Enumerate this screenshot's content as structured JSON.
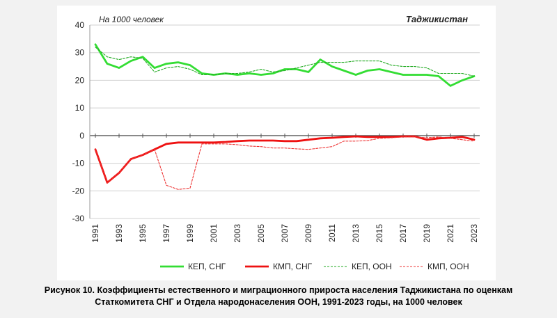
{
  "chart_data": {
    "type": "line",
    "unit_label": "На 1000 человек",
    "country_label": "Таджикистан",
    "x": [
      1991,
      1992,
      1993,
      1994,
      1995,
      1996,
      1997,
      1998,
      1999,
      2000,
      2001,
      2002,
      2003,
      2004,
      2005,
      2006,
      2007,
      2008,
      2009,
      2010,
      2011,
      2012,
      2013,
      2014,
      2015,
      2016,
      2017,
      2018,
      2019,
      2020,
      2021,
      2022,
      2023
    ],
    "xticks": [
      1991,
      1993,
      1995,
      1997,
      1999,
      2001,
      2003,
      2005,
      2007,
      2009,
      2011,
      2013,
      2015,
      2017,
      2019,
      2021,
      2023
    ],
    "ylim": [
      -30,
      40
    ],
    "yticks": [
      -30,
      -20,
      -10,
      0,
      10,
      20,
      30,
      40
    ],
    "grid": true,
    "legend_position": "bottom",
    "series": [
      {
        "name": "КЕП, СНГ",
        "color": "#33dd33",
        "style": "solid",
        "values": [
          33,
          26,
          24.5,
          27,
          28.5,
          24.5,
          26,
          26.5,
          25.5,
          22.5,
          22,
          22.5,
          22,
          22.5,
          22,
          22.5,
          24,
          24,
          23,
          27.5,
          25,
          23.5,
          22,
          23.5,
          24,
          23,
          22,
          22,
          22,
          21.5,
          18,
          20,
          21.5
        ]
      },
      {
        "name": "КМП, СНГ",
        "color": "#ee1111",
        "style": "solid",
        "values": [
          -5,
          -17,
          -13.5,
          -8.5,
          -7,
          -5,
          -3,
          -2.5,
          -2.5,
          -2.5,
          -2.5,
          -2.3,
          -2,
          -1.8,
          -1.8,
          -1.8,
          -2,
          -2,
          -1.5,
          -1,
          -0.8,
          -0.5,
          -0.3,
          -0.5,
          -0.5,
          -0.5,
          -0.3,
          -0.3,
          -1.5,
          -1,
          -0.8,
          -0.5,
          -1.5
        ]
      },
      {
        "name": "КЕП, ООН",
        "color": "#22aa22",
        "style": "dashed",
        "values": [
          32,
          28.5,
          27.5,
          28.5,
          28,
          23,
          24.5,
          25,
          24,
          22,
          22,
          22.5,
          22.5,
          23,
          24,
          23,
          23.5,
          24.5,
          25.5,
          26.5,
          26.5,
          26.5,
          27,
          27,
          27,
          25.5,
          25,
          25,
          24.5,
          22.5,
          22.5,
          22.5,
          21.5
        ]
      },
      {
        "name": "КМП, ООН",
        "color": "#ee3333",
        "style": "dashed",
        "values": [
          -5,
          -17,
          -13.5,
          -8.5,
          -7,
          -5,
          -18,
          -19.5,
          -19,
          -3,
          -3,
          -3,
          -3.3,
          -3.8,
          -4,
          -4.5,
          -4.5,
          -4.8,
          -5,
          -4.5,
          -4,
          -2,
          -2,
          -1.8,
          -1,
          -0.8,
          -0.5,
          -0.5,
          -0.8,
          -0.5,
          -1,
          -1.5,
          -2
        ]
      }
    ]
  },
  "caption": {
    "line1": "Рисунок 10. Коэффициенты естественного и миграционного прироста населения Таджикистана по оценкам",
    "line2": "Статкомитета СНГ и Отдела народонаселения ООН, 1991-2023 годы, на 1000 человек"
  }
}
